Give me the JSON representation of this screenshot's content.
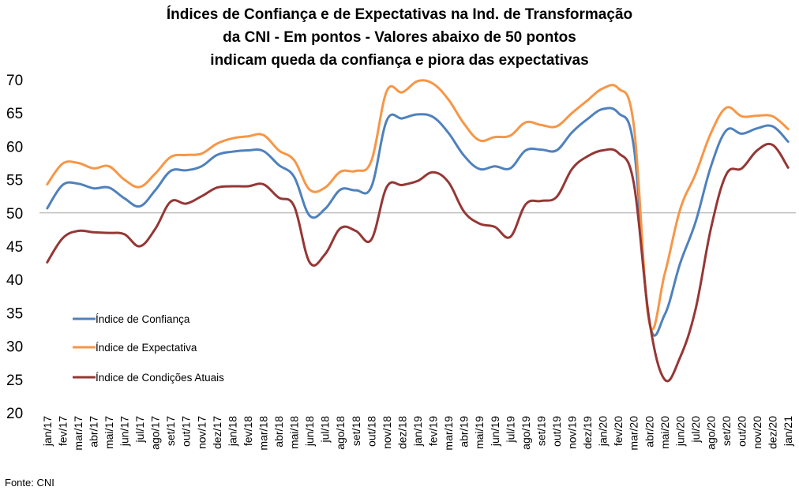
{
  "chart_data": {
    "type": "line",
    "title_lines": [
      "Índices de Confiança e de Expectativas na Ind. de Transformação",
      "da CNI - Em pontos - Valores abaixo de 50 pontos",
      "indicam queda da confiança e piora das expectativas"
    ],
    "xlabel": "",
    "ylabel": "",
    "ylim": [
      20,
      70
    ],
    "yticks": [
      20,
      25,
      30,
      35,
      40,
      45,
      50,
      55,
      60,
      65,
      70
    ],
    "reference_line": 50,
    "grid": false,
    "legend_position": "left-middle",
    "categories": [
      "jan/17",
      "fev/17",
      "mar/17",
      "abr/17",
      "mai/17",
      "jun/17",
      "jul/17",
      "ago/17",
      "set/17",
      "out/17",
      "nov/17",
      "dez/17",
      "jan/18",
      "fev/18",
      "mar/18",
      "abr/18",
      "mai/18",
      "jun/18",
      "jul/18",
      "ago/18",
      "set/18",
      "out/18",
      "nov/18",
      "dez/18",
      "jan/19",
      "fev/19",
      "mar/19",
      "abr/19",
      "mai/19",
      "jun/19",
      "jul/19",
      "ago/19",
      "set/19",
      "out/19",
      "nov/19",
      "dez/19",
      "jan/20",
      "fev/20",
      "mar/20",
      "abr/20",
      "mai/20",
      "jun/20",
      "jul/20",
      "ago/20",
      "set/20",
      "out/20",
      "nov/20",
      "dez/20",
      "jan/21"
    ],
    "series": [
      {
        "name": "Índice de Confiança",
        "color": "#4f81bd",
        "values": [
          50.7,
          54.2,
          54.4,
          53.7,
          53.8,
          52.2,
          51.0,
          53.4,
          56.3,
          56.4,
          57.0,
          58.7,
          59.2,
          59.4,
          59.3,
          57.2,
          55.4,
          49.6,
          50.6,
          53.5,
          53.4,
          53.9,
          63.9,
          64.2,
          64.8,
          64.4,
          62.0,
          58.6,
          56.6,
          57.0,
          56.7,
          59.4,
          59.5,
          59.4,
          62.1,
          64.1,
          65.6,
          65.0,
          60.0,
          33.7,
          34.7,
          42.4,
          48.6,
          57.0,
          62.4,
          61.9,
          62.7,
          63.0,
          60.7
        ]
      },
      {
        "name": "Índice de Expectativa",
        "color": "#f79646",
        "values": [
          54.3,
          57.4,
          57.5,
          56.7,
          57.0,
          55.0,
          53.9,
          55.9,
          58.4,
          58.7,
          58.9,
          60.4,
          61.2,
          61.5,
          61.7,
          59.4,
          57.9,
          53.5,
          53.8,
          56.2,
          56.3,
          57.8,
          68.3,
          68.1,
          69.8,
          69.4,
          67.0,
          63.4,
          60.9,
          61.4,
          61.6,
          63.6,
          63.2,
          63.0,
          65.0,
          66.9,
          68.7,
          68.7,
          63.2,
          33.6,
          40.8,
          50.5,
          55.8,
          62.0,
          65.8,
          64.5,
          64.6,
          64.5,
          62.6
        ]
      },
      {
        "name": "Índice de Condições Atuais",
        "color": "#953735",
        "values": [
          42.6,
          46.2,
          47.3,
          47.1,
          47.0,
          46.8,
          45.0,
          47.6,
          51.7,
          51.4,
          52.5,
          53.8,
          54.0,
          54.0,
          54.3,
          52.3,
          51.0,
          42.6,
          43.8,
          47.7,
          47.3,
          46.0,
          53.9,
          54.2,
          54.8,
          56.1,
          54.6,
          50.2,
          48.4,
          47.9,
          46.4,
          51.3,
          51.8,
          52.4,
          56.6,
          58.5,
          59.4,
          59.0,
          54.5,
          34.0,
          25.0,
          28.3,
          35.5,
          47.7,
          55.8,
          56.7,
          59.4,
          60.2,
          56.8
        ]
      }
    ]
  },
  "source": "Fonte: CNI"
}
